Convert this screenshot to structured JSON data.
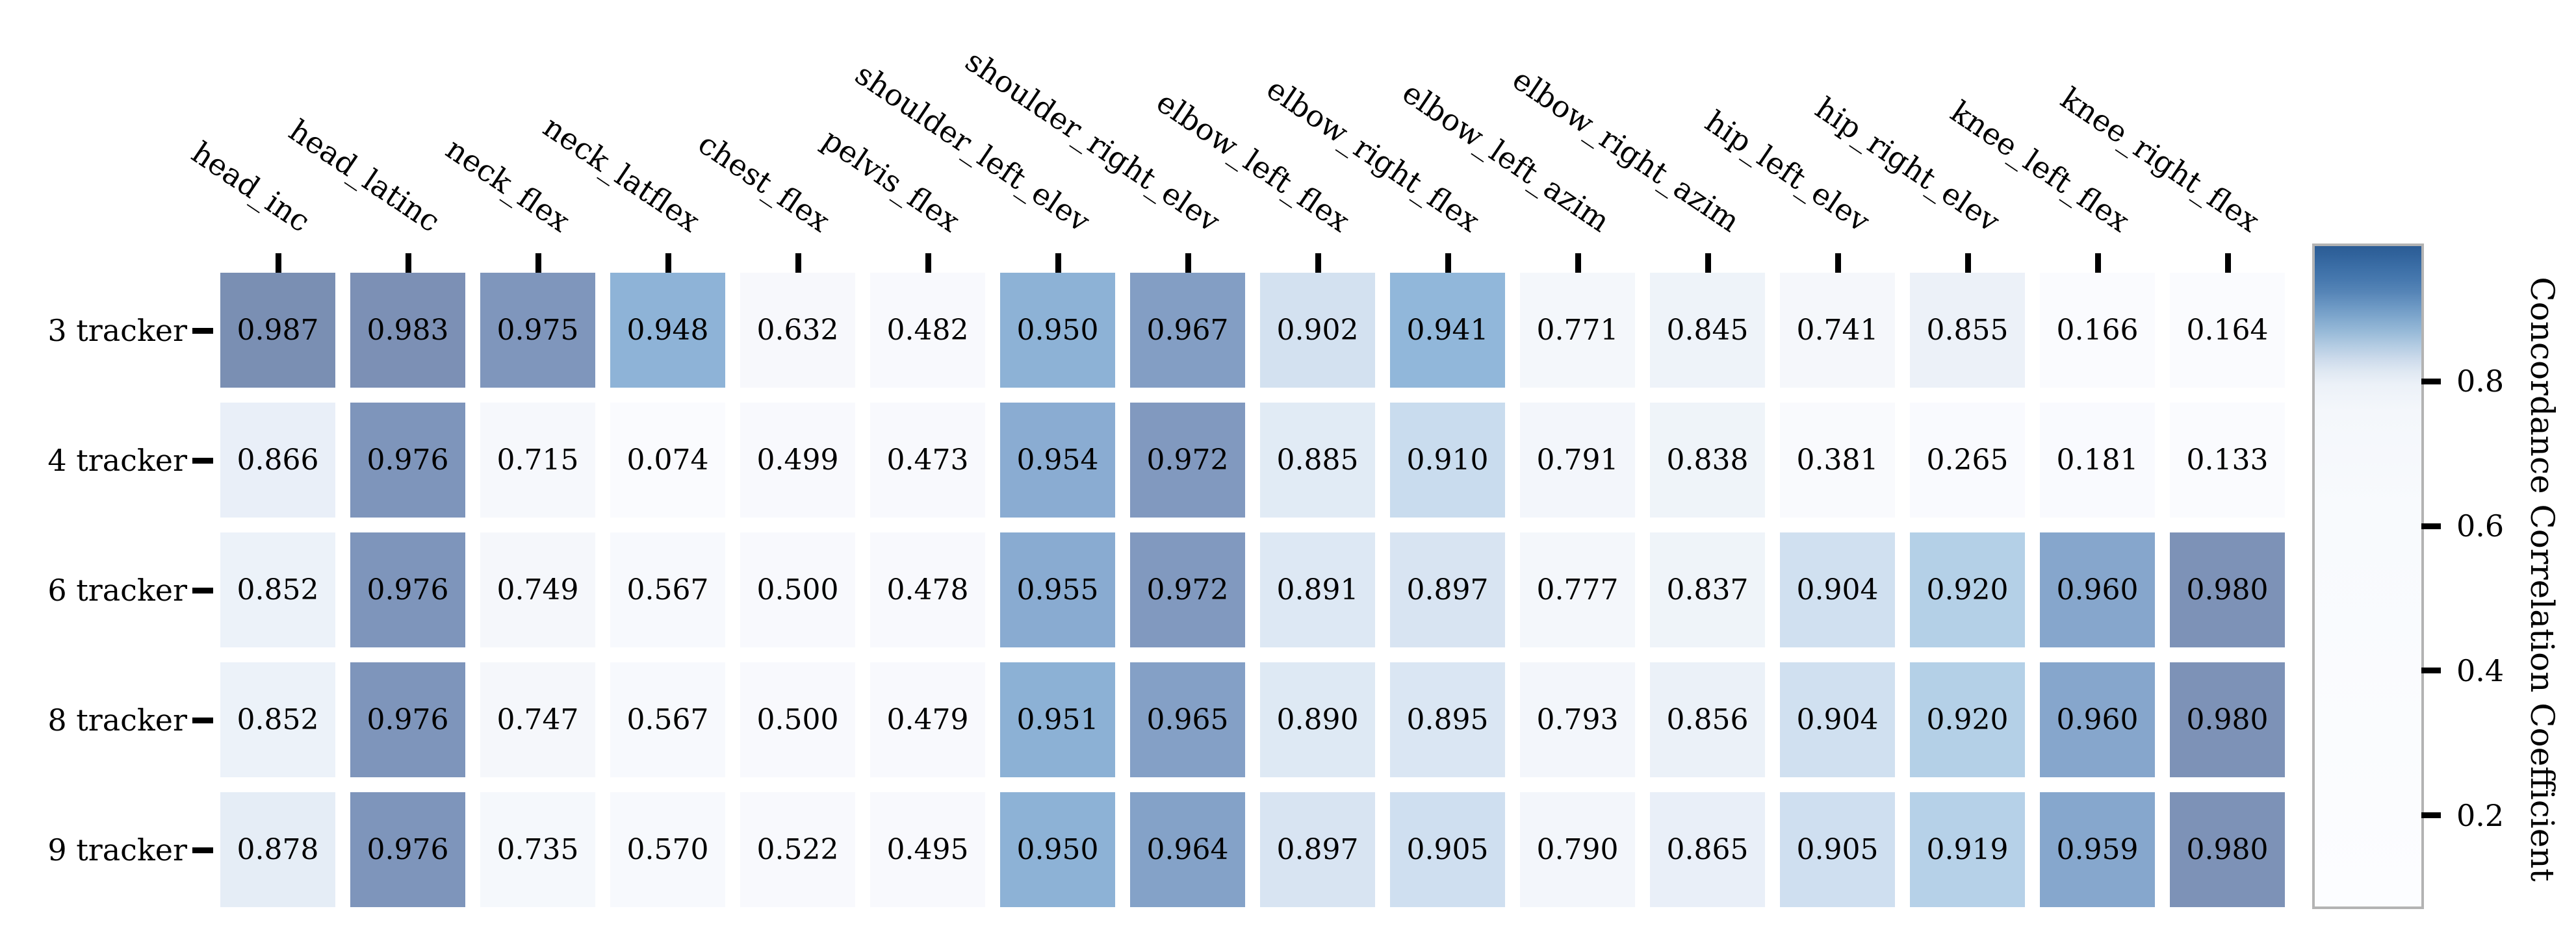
{
  "chart_data": {
    "type": "heatmap",
    "title": "",
    "xlabel": "",
    "ylabel": "",
    "rows": [
      "3 tracker",
      "4 tracker",
      "6 tracker",
      "8 tracker",
      "9 tracker"
    ],
    "columns": [
      "head_inc",
      "head_latinc",
      "neck_flex",
      "neck_latflex",
      "chest_flex",
      "pelvis_flex",
      "shoulder_left_elev",
      "shoulder_right_elev",
      "elbow_left_flex",
      "elbow_right_flex",
      "elbow_left_azim",
      "elbow_right_azim",
      "hip_left_elev",
      "hip_right_elev",
      "knee_left_flex",
      "knee_right_flex"
    ],
    "values": [
      [
        0.987,
        0.983,
        0.975,
        0.948,
        0.632,
        0.482,
        0.95,
        0.967,
        0.902,
        0.941,
        0.771,
        0.845,
        0.741,
        0.855,
        0.166,
        0.164
      ],
      [
        0.866,
        0.976,
        0.715,
        0.074,
        0.499,
        0.473,
        0.954,
        0.972,
        0.885,
        0.91,
        0.791,
        0.838,
        0.381,
        0.265,
        0.181,
        0.133
      ],
      [
        0.852,
        0.976,
        0.749,
        0.567,
        0.5,
        0.478,
        0.955,
        0.972,
        0.891,
        0.897,
        0.777,
        0.837,
        0.904,
        0.92,
        0.96,
        0.98
      ],
      [
        0.852,
        0.976,
        0.747,
        0.567,
        0.5,
        0.479,
        0.951,
        0.965,
        0.89,
        0.895,
        0.793,
        0.856,
        0.904,
        0.92,
        0.96,
        0.98
      ],
      [
        0.878,
        0.976,
        0.735,
        0.57,
        0.522,
        0.495,
        0.95,
        0.964,
        0.897,
        0.905,
        0.79,
        0.865,
        0.905,
        0.919,
        0.959,
        0.98
      ]
    ],
    "value_decimals": 3,
    "colorbar": {
      "label": "Concordance Correlation Coefficient",
      "tick_labels": [
        "0.8",
        "0.6",
        "0.4",
        "0.2"
      ],
      "tick_values": [
        0.8,
        0.6,
        0.4,
        0.2
      ],
      "vmin": 0.074,
      "vmax": 0.987,
      "position": "right"
    },
    "layout_hints": {
      "x_tick_rotation_deg": 34,
      "x_axis_position": "top",
      "grid": "off",
      "cell_gap": true
    },
    "colors": {
      "background": "#ffffff",
      "text": "#000000",
      "tick": "#000000",
      "colorbar_frame": "#b3b3b3",
      "cell_anchors": [
        [
          0.074,
          "#fafbfe"
        ],
        [
          0.5,
          "#f8f9fd"
        ],
        [
          0.7,
          "#f6f8fc"
        ],
        [
          0.775,
          "#f4f7fb"
        ],
        [
          0.82,
          "#f1f5fa"
        ],
        [
          0.845,
          "#eef3f9"
        ],
        [
          0.862,
          "#eaf0f8"
        ],
        [
          0.878,
          "#e5edf6"
        ],
        [
          0.89,
          "#dee9f4"
        ],
        [
          0.9,
          "#d5e2f1"
        ],
        [
          0.91,
          "#c9dcee"
        ],
        [
          0.92,
          "#b4d0e7"
        ],
        [
          0.93,
          "#a1c4e0"
        ],
        [
          0.942,
          "#90b6d9"
        ],
        [
          0.95,
          "#8db2d6"
        ],
        [
          0.955,
          "#89abd1"
        ],
        [
          0.961,
          "#85a5cb"
        ],
        [
          0.967,
          "#839ec4"
        ],
        [
          0.972,
          "#8199bf"
        ],
        [
          0.976,
          "#7e95bb"
        ],
        [
          0.981,
          "#7d91b6"
        ],
        [
          0.987,
          "#7a8fb3"
        ]
      ],
      "colorbar_stops": [
        [
          0.0,
          "#2c5d95"
        ],
        [
          0.012,
          "#30629b"
        ],
        [
          0.03,
          "#3a6da5"
        ],
        [
          0.05,
          "#4678ae"
        ],
        [
          0.07,
          "#5685b7"
        ],
        [
          0.09,
          "#6b97c3"
        ],
        [
          0.11,
          "#81a9ce"
        ],
        [
          0.13,
          "#98bad8"
        ],
        [
          0.15,
          "#b2cbe2"
        ],
        [
          0.17,
          "#cbdaeb"
        ],
        [
          0.19,
          "#dfe8f2"
        ],
        [
          0.21,
          "#ecf1f8"
        ],
        [
          0.25,
          "#f4f7fb"
        ],
        [
          0.4,
          "#f8fafd"
        ],
        [
          1.0,
          "#fcfdff"
        ]
      ]
    }
  }
}
